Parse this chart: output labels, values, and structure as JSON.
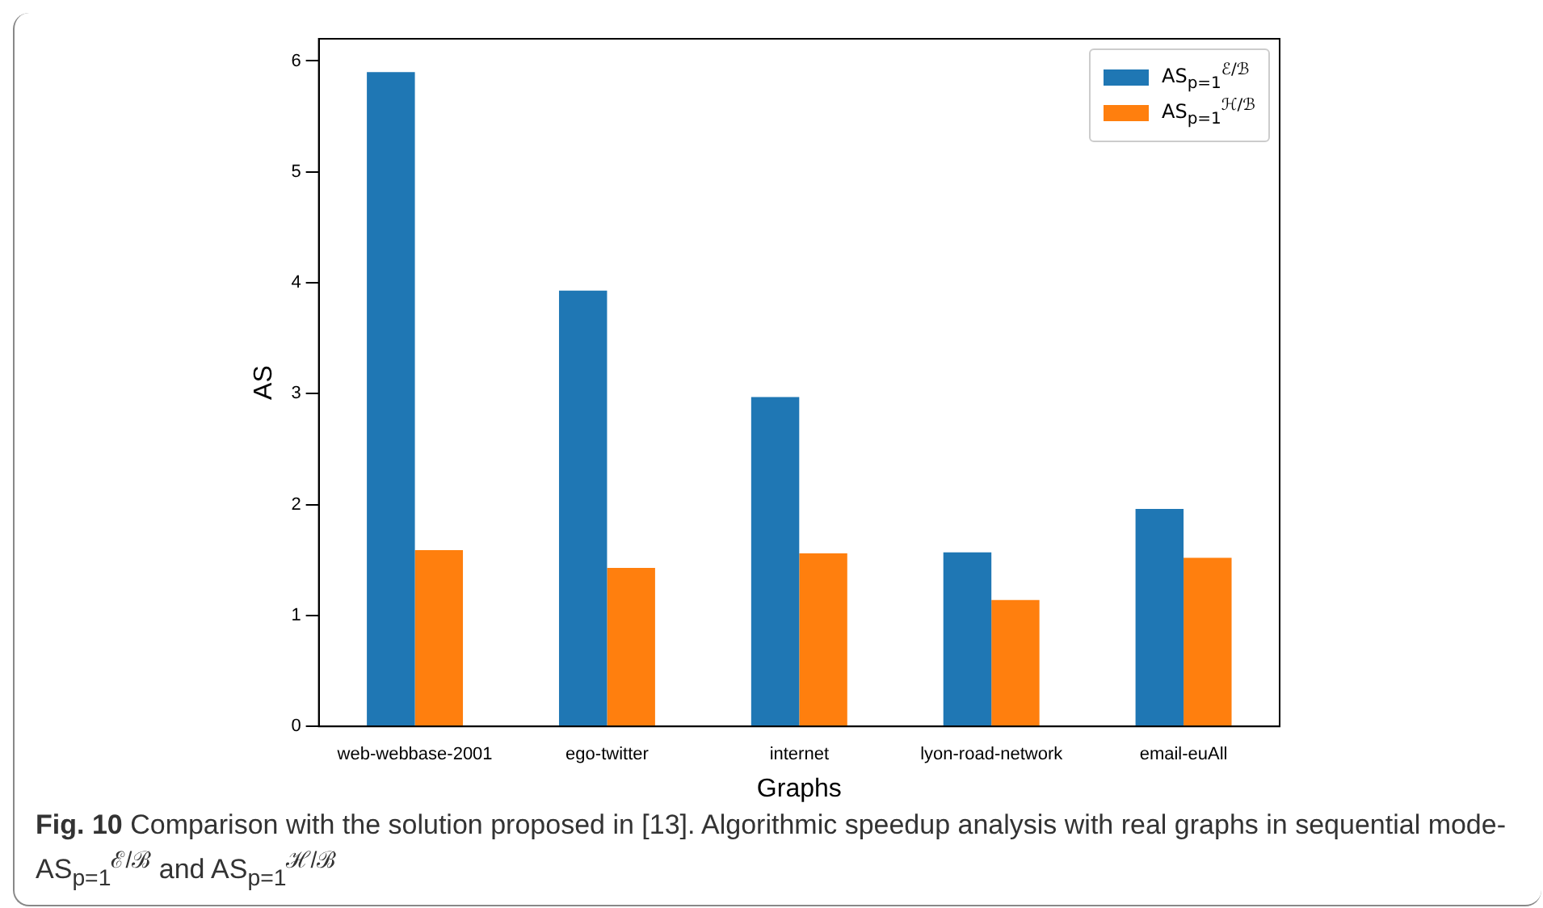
{
  "chart_data": {
    "type": "bar",
    "xlabel": "Graphs",
    "ylabel": "AS",
    "categories": [
      "web-webbase-2001",
      "ego-twitter",
      "internet",
      "lyon-road-network",
      "email-euAll"
    ],
    "series": [
      {
        "name": "AS$_{p=1}$$^{ℰ/ℬ}$",
        "color": "#1f77b4",
        "values": [
          5.9,
          3.93,
          2.97,
          1.57,
          1.96
        ]
      },
      {
        "name": "AS$_{p=1}$$^{ℋ/ℬ}$",
        "color": "#ff7f0e",
        "values": [
          1.59,
          1.43,
          1.56,
          1.14,
          1.52
        ]
      }
    ],
    "ylim": [
      0,
      6.2
    ],
    "yticks": [
      0,
      1,
      2,
      3,
      4,
      5,
      6
    ],
    "grid": false,
    "legend": "top right",
    "annotations": [
      "Fig. 10  Comparison with the solution proposed in [13]. Algorithmic speedup analysis with real graphs in sequential mode-AS$_{p=1}$$^{ℰ/ℬ}$ and AS$_{p=1}$$^{ℋ/ℬ}$"
    ]
  }
}
